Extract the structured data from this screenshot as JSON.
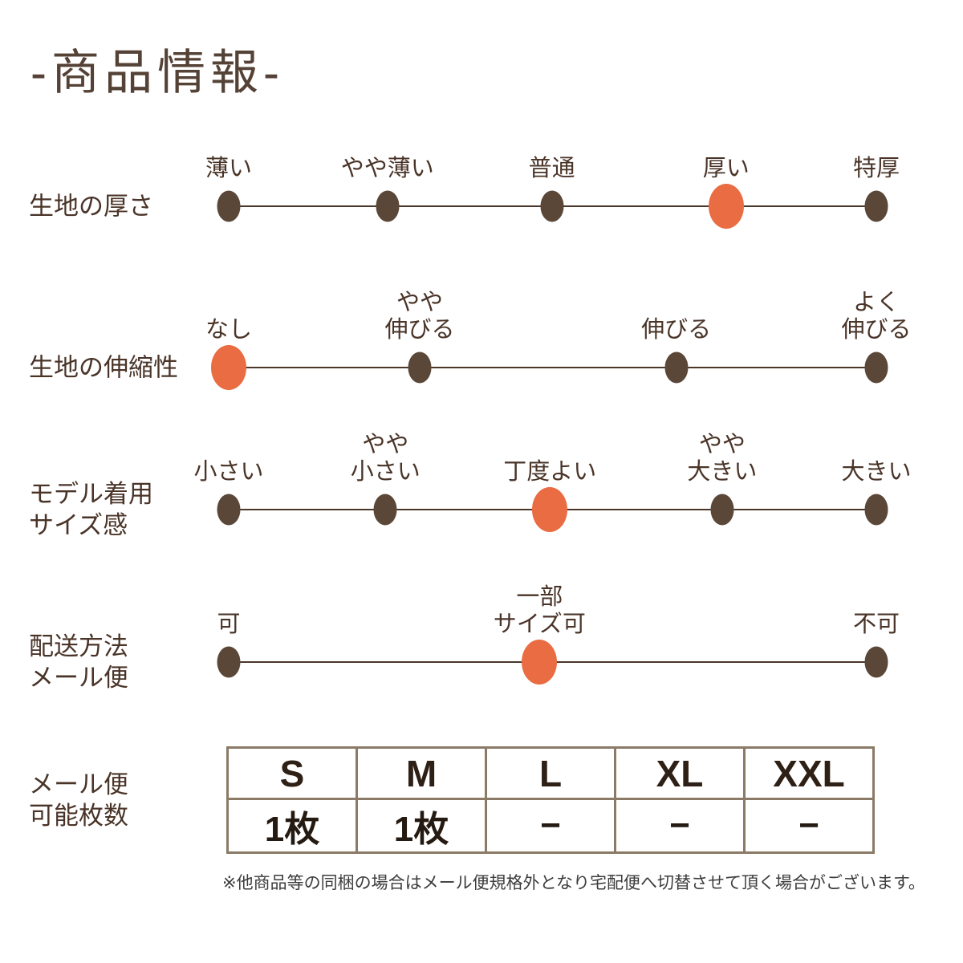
{
  "title": "-商品情報-",
  "colors": {
    "accent": "#e96c42",
    "dot": "#5a4738",
    "text": "#4a3428",
    "table_border": "#8a7a66"
  },
  "scales": [
    {
      "label_lines": [
        "生地の厚さ"
      ],
      "items": [
        {
          "lines": [
            "薄い"
          ],
          "pos": 0,
          "selected": false
        },
        {
          "lines": [
            "やや薄い"
          ],
          "pos": 24.5,
          "selected": false
        },
        {
          "lines": [
            "普通"
          ],
          "pos": 49.9,
          "selected": false
        },
        {
          "lines": [
            "厚い"
          ],
          "pos": 76.8,
          "selected": true
        },
        {
          "lines": [
            "特厚"
          ],
          "pos": 100,
          "selected": false
        }
      ]
    },
    {
      "label_lines": [
        "生地の伸縮性"
      ],
      "items": [
        {
          "lines": [
            "なし"
          ],
          "pos": 0,
          "selected": true
        },
        {
          "lines": [
            "やや",
            "伸びる"
          ],
          "pos": 29.5,
          "selected": false
        },
        {
          "lines": [
            "伸びる"
          ],
          "pos": 69.1,
          "selected": false
        },
        {
          "lines": [
            "よく",
            "伸びる"
          ],
          "pos": 100,
          "selected": false
        }
      ]
    },
    {
      "label_lines": [
        "モデル着用",
        "サイズ感"
      ],
      "items": [
        {
          "lines": [
            "小さい"
          ],
          "pos": 0,
          "selected": false
        },
        {
          "lines": [
            "やや",
            "小さい"
          ],
          "pos": 24.2,
          "selected": false
        },
        {
          "lines": [
            "丁度よい"
          ],
          "pos": 49.6,
          "selected": true
        },
        {
          "lines": [
            "やや",
            "大きい"
          ],
          "pos": 76.2,
          "selected": false
        },
        {
          "lines": [
            "大きい"
          ],
          "pos": 100,
          "selected": false
        }
      ]
    },
    {
      "label_lines": [
        "配送方法",
        "メール便"
      ],
      "items": [
        {
          "lines": [
            "可"
          ],
          "pos": 0,
          "selected": false
        },
        {
          "lines": [
            "一部",
            "サイズ可"
          ],
          "pos": 48,
          "selected": true
        },
        {
          "lines": [
            "不可"
          ],
          "pos": 100,
          "selected": false
        }
      ]
    }
  ],
  "table": {
    "label_lines": [
      "メール便",
      "可能枚数"
    ],
    "headers": [
      "S",
      "M",
      "L",
      "XL",
      "XXL"
    ],
    "values": [
      "1枚",
      "1枚",
      "−",
      "−",
      "−"
    ]
  },
  "footnote": "※他商品等の同梱の場合はメール便規格外となり宅配便へ切替させて頂く場合がございます。"
}
